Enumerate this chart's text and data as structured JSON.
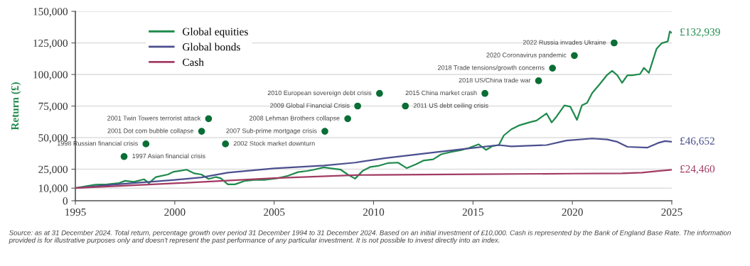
{
  "chart_data": {
    "type": "line",
    "ylabel": "Return (£)",
    "xlim": [
      1995,
      2025
    ],
    "xticks": [
      1995,
      2000,
      2005,
      2010,
      2015,
      2020,
      2025
    ],
    "ylim": [
      0,
      150000
    ],
    "yticks": [
      {
        "value": 0,
        "label": "0"
      },
      {
        "value": 10000,
        "label": "10,000"
      },
      {
        "value": 25000,
        "label": "25,000"
      },
      {
        "value": 50000,
        "label": "50,000"
      },
      {
        "value": 75000,
        "label": "75,000"
      },
      {
        "value": 100000,
        "label": "100,000"
      },
      {
        "value": 125000,
        "label": "125,000"
      },
      {
        "value": 150000,
        "label": "150,000"
      }
    ],
    "grid": "y",
    "legend": "top left",
    "marker": "none",
    "line_style": "solid",
    "series": [
      {
        "name": "Global equities",
        "color": "#1f8a4c",
        "x": [
          1995,
          1996.0,
          1996.6,
          1997.2,
          1997.5,
          1997.95,
          1998.45,
          1998.7,
          1999.05,
          1999.65,
          1999.95,
          2000.6,
          2000.98,
          2001.34,
          2001.7,
          2002.07,
          2002.3,
          2002.67,
          2003.03,
          2003.5,
          2004.0,
          2004.5,
          2005.2,
          2005.7,
          2006.2,
          2006.66,
          2007.0,
          2007.5,
          2007.86,
          2008.35,
          2008.7,
          2009.07,
          2009.46,
          2009.84,
          2010.28,
          2010.72,
          2011.23,
          2011.67,
          2012.12,
          2012.5,
          2013.0,
          2013.4,
          2013.9,
          2014.4,
          2014.78,
          2015.28,
          2015.66,
          2015.98,
          2016.3,
          2016.55,
          2016.93,
          2017.31,
          2017.82,
          2018.2,
          2018.7,
          2018.96,
          2019.2,
          2019.6,
          2019.9,
          2020.23,
          2020.48,
          2020.74,
          2021.0,
          2021.38,
          2021.75,
          2022.0,
          2022.26,
          2022.5,
          2022.77,
          2023.0,
          2023.4,
          2023.6,
          2023.85,
          2024.23,
          2024.5,
          2024.8,
          2024.9,
          2025
        ],
        "values": [
          10000,
          12700,
          13000,
          14000,
          15800,
          15000,
          17000,
          14000,
          18800,
          20800,
          23000,
          24600,
          21700,
          20800,
          17300,
          18800,
          17900,
          13000,
          13000,
          15600,
          16500,
          16500,
          17900,
          19800,
          22700,
          23600,
          24600,
          26500,
          25600,
          24600,
          20800,
          17500,
          23800,
          26800,
          27800,
          29800,
          30200,
          25800,
          28800,
          31800,
          32800,
          36800,
          38700,
          40100,
          41700,
          44700,
          40300,
          43300,
          44100,
          51700,
          56600,
          59600,
          62000,
          63600,
          69100,
          62000,
          66600,
          75500,
          74500,
          64000,
          75500,
          77500,
          85400,
          92400,
          99700,
          102900,
          99400,
          93400,
          99400,
          99400,
          100300,
          105300,
          101300,
          120200,
          124800,
          126200,
          134100,
          132939
        ],
        "value_labels": [
          null,
          null,
          null,
          null,
          null,
          null,
          null,
          null,
          null,
          null,
          null,
          null,
          null,
          null,
          null,
          null,
          null,
          null,
          null,
          null,
          null,
          null,
          null,
          null,
          null,
          null,
          null,
          null,
          null,
          null,
          null,
          null,
          null,
          null,
          null,
          null,
          null,
          null,
          null,
          null,
          null,
          null,
          null,
          null,
          null,
          null,
          null,
          null,
          null,
          null,
          null,
          null,
          null,
          null,
          null,
          null,
          null,
          null,
          null,
          null,
          null,
          null,
          null,
          null,
          null,
          null,
          null,
          null,
          null,
          null,
          null,
          null,
          null,
          null,
          null,
          null,
          null,
          "£132,939"
        ]
      },
      {
        "name": "Global bonds",
        "color": "#4b4f8e",
        "x": [
          1995,
          1997.2,
          2000,
          2001.34,
          2002.67,
          2005,
          2007.5,
          2009.07,
          2010.6,
          2013.26,
          2014.9,
          2016.3,
          2016.93,
          2018.7,
          2019.7,
          2021.0,
          2021.75,
          2022.26,
          2022.77,
          2023.78,
          2024.3,
          2024.66,
          2025
        ],
        "values": [
          10000,
          13100,
          16500,
          18500,
          22300,
          25600,
          27900,
          30200,
          33800,
          38700,
          41700,
          44100,
          43100,
          44100,
          47700,
          49300,
          48500,
          46700,
          42700,
          42100,
          45700,
          47300,
          46652
        ],
        "value_labels": [
          null,
          null,
          null,
          null,
          null,
          null,
          null,
          null,
          null,
          null,
          null,
          null,
          null,
          null,
          null,
          null,
          null,
          null,
          null,
          null,
          null,
          null,
          "£46,652"
        ]
      },
      {
        "name": "Cash",
        "color": "#a23b62",
        "x": [
          1995,
          2000,
          2005,
          2009.07,
          2010,
          2015,
          2020,
          2022.5,
          2023.5,
          2024.3,
          2025
        ],
        "values": [
          10000,
          13800,
          17900,
          20300,
          20500,
          21000,
          21500,
          21700,
          22300,
          23500,
          24460
        ],
        "value_labels": [
          null,
          null,
          null,
          null,
          null,
          null,
          null,
          null,
          null,
          null,
          "£24,460"
        ]
      }
    ],
    "annotations": [
      {
        "text": "2022 Russia invades Ukraine",
        "x": 2022.1,
        "y": 125000
      },
      {
        "text": "2020 Coronavirus pandemic",
        "x": 2020.1,
        "y": 115000
      },
      {
        "text": "2018 Trade tensions/growth concerns",
        "x": 2019.0,
        "y": 105000
      },
      {
        "text": "2018 US/China trade war",
        "x": 2018.3,
        "y": 95000
      },
      {
        "text": "2015 China market crash",
        "x": 2015.6,
        "y": 85000
      },
      {
        "text": "2011 US debt ceiling crisis",
        "x": 2011.6,
        "y": 75000
      },
      {
        "text": "2010 European sovereign debt crisis",
        "x": 2010.3,
        "y": 85000
      },
      {
        "text": "2009 Global Financial Crisis",
        "x": 2009.2,
        "y": 75000
      },
      {
        "text": "2008 Lehman Brothers collapse",
        "x": 2008.7,
        "y": 65000
      },
      {
        "text": "2007 Sub-prime mortgage crisis",
        "x": 2007.55,
        "y": 55000
      },
      {
        "text": "2001 Twin Towers terrorist attack",
        "x": 2001.7,
        "y": 65000
      },
      {
        "text": "2001 Dot com bubble collapse",
        "x": 2001.35,
        "y": 55000
      },
      {
        "text": "2002 Stock market downturn",
        "x": 2002.55,
        "y": 45000
      },
      {
        "text": "1998 Russian financial crisis",
        "x": 1998.55,
        "y": 45000
      },
      {
        "text": "1997 Asian financial crisis",
        "x": 1997.45,
        "y": 35000
      },
      "Source: as at 31 December 2024. Total return, percentage growth over period 31 December 1994 to 31 December 2024. Based on an initial investment of £10,000. Cash is represented by the Bank of England Base Rate. The information provided is for illustrative purposes only and doesn't represent the past performance of any particular investment. It is not possible to invest directly into an index."
    ]
  }
}
